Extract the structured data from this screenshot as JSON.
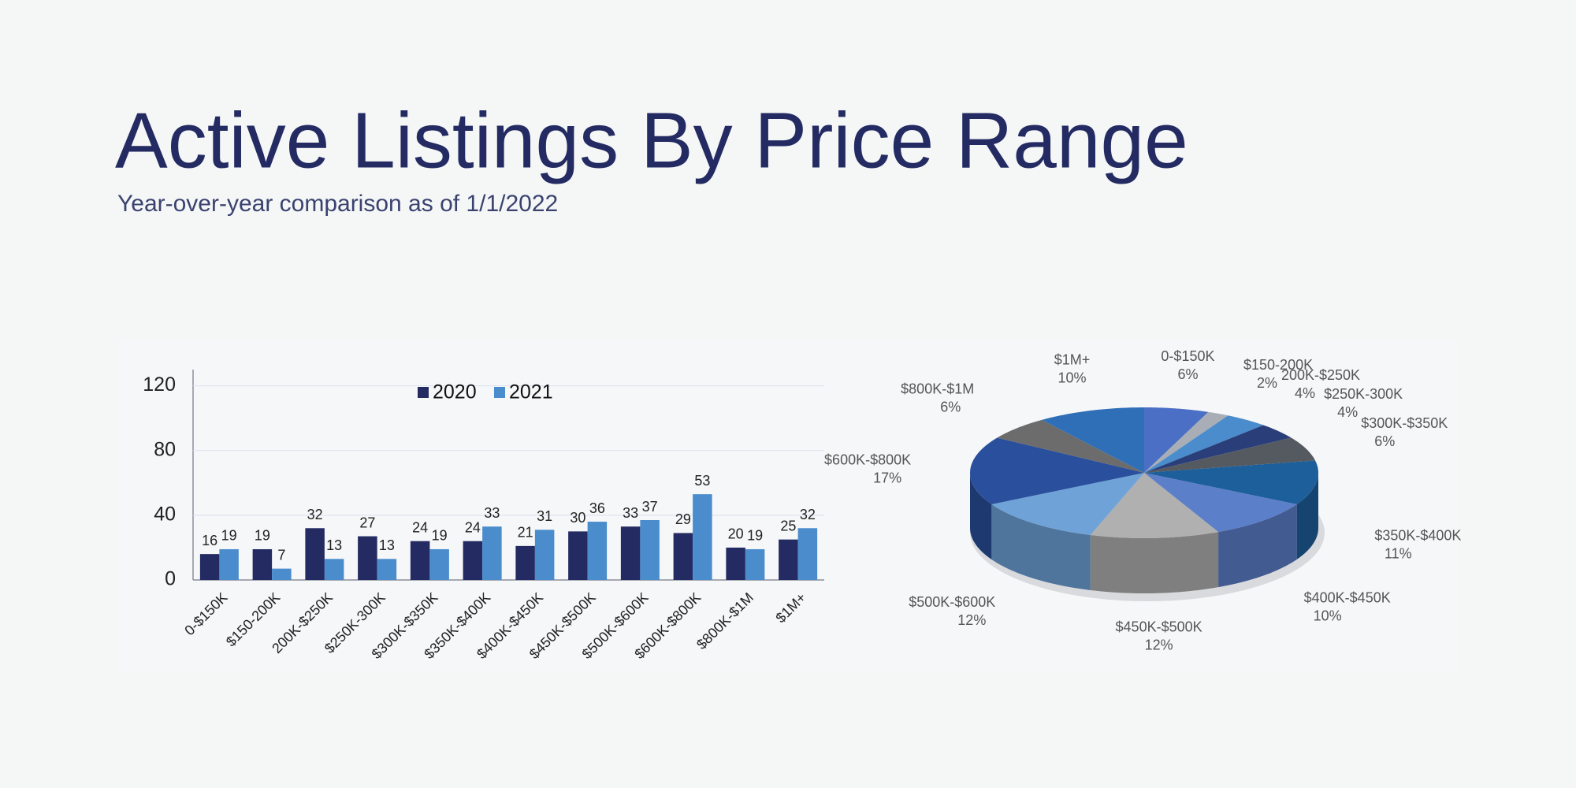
{
  "header": {
    "title": "Active Listings By Price Range",
    "subtitle": "Year-over-year comparison as of 1/1/2022"
  },
  "chart_data": [
    {
      "type": "bar",
      "categories": [
        "0-$150K",
        "$150-200K",
        "200K-$250K",
        "$250K-300K",
        "$300K-$350K",
        "$350K-$400K",
        "$400K-$450K",
        "$450K-$500K",
        "$500K-$600K",
        "$600K-$800K",
        "$800K-$1M",
        "$1M+"
      ],
      "series": [
        {
          "name": "2020",
          "color": "#232b62",
          "values": [
            16,
            19,
            32,
            27,
            24,
            24,
            21,
            30,
            33,
            29,
            20,
            25
          ]
        },
        {
          "name": "2021",
          "color": "#4a8ccc",
          "values": [
            19,
            7,
            13,
            13,
            19,
            33,
            31,
            36,
            37,
            53,
            19,
            32
          ]
        }
      ],
      "ylim": [
        0,
        130
      ],
      "yticks": [
        0,
        40,
        80,
        120
      ],
      "grid": true,
      "legend": "top"
    },
    {
      "type": "pie",
      "categories": [
        "0-$150K",
        "$150-200K",
        "200K-$250K",
        "$250K-300K",
        "$300K-$350K",
        "$350K-$400K",
        "$400K-$450K",
        "$450K-$500K",
        "$500K-$600K",
        "$600K-$800K",
        "$800K-$1M",
        "$1M+"
      ],
      "values": [
        6,
        2,
        4,
        4,
        6,
        11,
        10,
        12,
        12,
        17,
        6,
        10
      ],
      "value_labels": [
        "6%",
        "2%",
        "4%",
        "4%",
        "6%",
        "11%",
        "10%",
        "12%",
        "12%",
        "17%",
        "6%",
        "10%"
      ],
      "colors": [
        "#4a6fc4",
        "#a9adb5",
        "#4a8ccc",
        "#2a3f7a",
        "#555a60",
        "#1c5f9a",
        "#5b7fc8",
        "#b0b0b0",
        "#6fa3d8",
        "#2a4f9c",
        "#6c6c6c",
        "#2e6fb8"
      ]
    }
  ]
}
